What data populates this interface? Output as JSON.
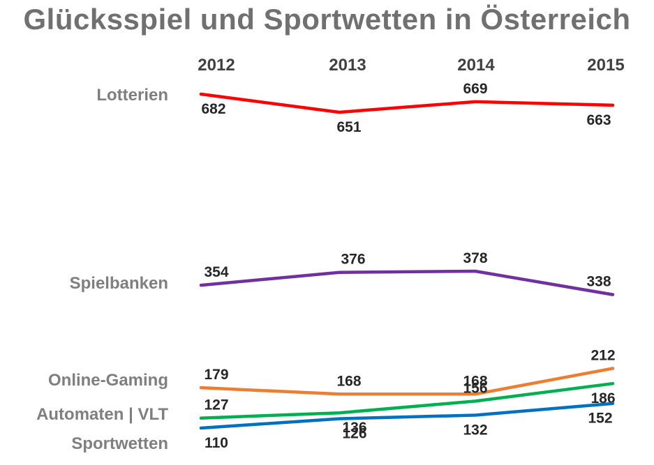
{
  "chart_data": {
    "type": "line",
    "title": "Glücksspiel und Sportwetten in Österreich",
    "categories": [
      "2012",
      "2013",
      "2014",
      "2015"
    ],
    "series": [
      {
        "name": "Lotterien",
        "values": [
          682,
          651,
          669,
          663
        ],
        "color": "#ff0000"
      },
      {
        "name": "Spielbanken",
        "values": [
          354,
          376,
          378,
          338
        ],
        "color": "#7030a0"
      },
      {
        "name": "Online-Gaming",
        "values": [
          179,
          168,
          168,
          212
        ],
        "color": "#ed7d31"
      },
      {
        "name": "Automaten | VLT",
        "values": [
          127,
          136,
          156,
          186
        ],
        "color": "#00b050"
      },
      {
        "name": "Sportwetten",
        "values": [
          110,
          126,
          132,
          152
        ],
        "color": "#0070c0"
      }
    ],
    "legend": "left",
    "grid": false,
    "axes_visible": false
  }
}
